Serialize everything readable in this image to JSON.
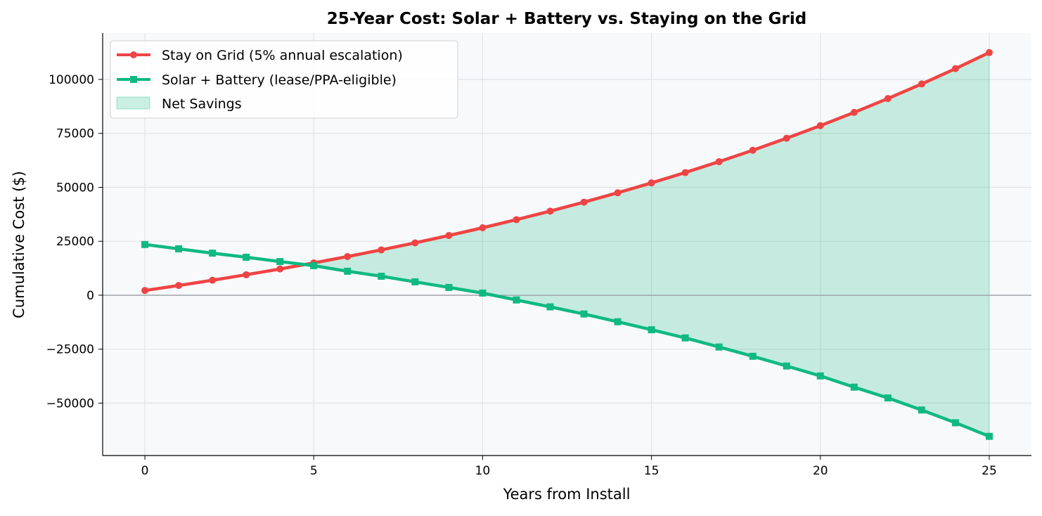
{
  "chart_data": {
    "type": "line",
    "title": "25-Year Cost: Solar + Battery vs. Staying on the Grid",
    "xlabel": "Years from Install",
    "ylabel": "Cumulative Cost ($)",
    "xlim": [
      -1.25,
      26.25
    ],
    "ylim": [
      -74300,
      121500
    ],
    "xticks": [
      0,
      5,
      10,
      15,
      20,
      25
    ],
    "yticks": [
      -50000,
      -25000,
      0,
      25000,
      50000,
      75000,
      100000
    ],
    "ytick_labels": [
      "−50000",
      "−25000",
      "0",
      "25000",
      "50000",
      "75000",
      "100000"
    ],
    "grid": true,
    "legend_position": "top-left",
    "x": [
      0,
      1,
      2,
      3,
      4,
      5,
      6,
      7,
      8,
      9,
      10,
      11,
      12,
      13,
      14,
      15,
      16,
      17,
      18,
      19,
      20,
      21,
      22,
      23,
      24,
      25
    ],
    "series": [
      {
        "name": "Stay on Grid (5% annual escalation)",
        "color": "#ef4444",
        "marker": "circle",
        "values": [
          2200,
          4510,
          6936,
          9483,
          12157,
          14965,
          17913,
          21009,
          24259,
          27672,
          31256,
          35019,
          38970,
          43118,
          47474,
          52048,
          56850,
          61892,
          67187,
          72746,
          78583,
          84712,
          91148,
          97905,
          105000,
          112450
        ]
      },
      {
        "name": "Solar + Battery (lease/PPA-eligible)",
        "color": "#10b981",
        "marker": "square",
        "values": [
          23500,
          21500,
          19500,
          17600,
          15600,
          13700,
          11100,
          8800,
          6200,
          3600,
          1000,
          -2200,
          -5400,
          -8700,
          -12300,
          -16000,
          -19800,
          -24000,
          -28300,
          -32800,
          -37400,
          -42600,
          -47600,
          -53200,
          -59100,
          -65400
        ]
      }
    ],
    "fill": {
      "name": "Net Savings",
      "color": "#10b981",
      "opacity": 0.22
    }
  }
}
